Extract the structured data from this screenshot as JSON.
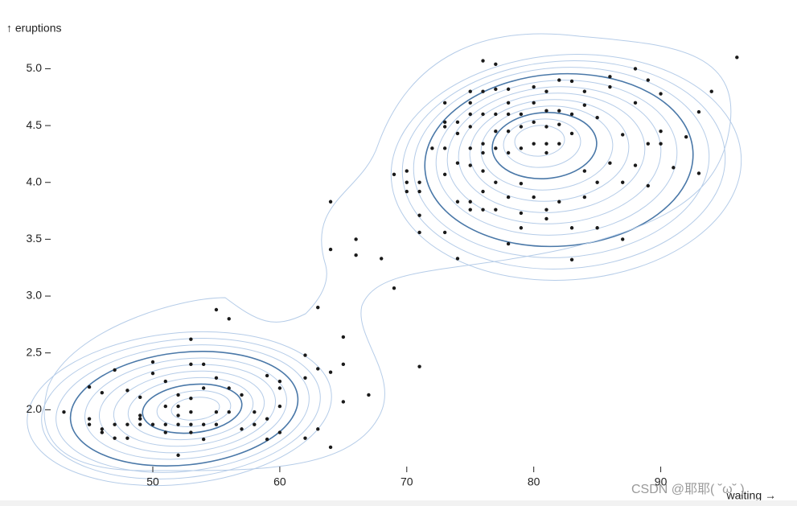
{
  "chart_data": {
    "type": "scatter",
    "x_label": "waiting →",
    "y_label": "↑ eruptions",
    "watermark": "CSDN @耶耶( ˘ω˘ )",
    "color": "#1a1a1a",
    "xlim": [
      40.5,
      97.5
    ],
    "ylim": [
      1.5,
      5.18
    ],
    "xticks": [
      50,
      60,
      70,
      80,
      90
    ],
    "yticks": [
      {
        "value": 2,
        "label": "2.0"
      },
      2.5,
      {
        "value": 3,
        "label": "3.0"
      },
      3.5,
      {
        "value": 4,
        "label": "4.0"
      },
      4.5,
      {
        "value": 5,
        "label": "5.0"
      }
    ],
    "x": [
      43,
      45,
      45,
      45,
      46,
      46,
      46,
      47,
      47,
      47,
      48,
      48,
      48,
      49,
      49,
      49,
      49,
      50,
      50,
      50,
      51,
      51,
      51,
      51,
      52,
      52,
      52,
      52,
      52,
      53,
      53,
      53,
      53,
      53,
      53,
      54,
      54,
      54,
      54,
      55,
      55,
      55,
      55,
      56,
      56,
      56,
      57,
      57,
      58,
      58,
      59,
      59,
      59,
      60,
      60,
      60,
      60,
      62,
      62,
      62,
      63,
      63,
      63,
      64,
      64,
      65,
      65,
      65,
      67,
      64,
      64,
      66,
      66,
      68,
      69,
      71,
      74,
      69,
      70,
      70,
      70,
      71,
      71,
      71,
      71,
      72,
      73,
      73,
      73,
      73,
      73,
      73,
      74,
      74,
      74,
      74,
      75,
      75,
      75,
      75,
      75,
      75,
      75,
      75,
      76,
      76,
      76,
      76,
      76,
      76,
      76,
      76,
      77,
      77,
      77,
      77,
      77,
      77,
      77,
      78,
      78,
      78,
      78,
      78,
      78,
      78,
      79,
      79,
      79,
      79,
      79,
      79,
      80,
      80,
      80,
      80,
      80,
      81,
      81,
      81,
      81,
      81,
      81,
      81,
      82,
      82,
      82,
      82,
      82,
      83,
      83,
      83,
      83,
      83,
      84,
      84,
      84,
      84,
      85,
      85,
      85,
      86,
      86,
      86,
      87,
      87,
      87,
      88,
      88,
      88,
      89,
      89,
      89,
      90,
      90,
      90,
      91,
      92,
      93,
      93,
      94,
      96
    ],
    "values": [
      1.98,
      2.2,
      1.92,
      1.87,
      2.15,
      1.83,
      1.8,
      2.35,
      1.87,
      1.75,
      2.17,
      1.75,
      1.87,
      2.11,
      1.95,
      1.92,
      1.87,
      2.42,
      2.32,
      1.87,
      2.25,
      2.03,
      1.87,
      1.8,
      2.13,
      2.03,
      1.95,
      1.87,
      1.6,
      2.62,
      2.4,
      2.1,
      1.98,
      1.87,
      1.8,
      2.4,
      2.19,
      1.87,
      1.74,
      2.88,
      2.28,
      1.98,
      1.87,
      2.8,
      2.19,
      1.98,
      2.13,
      1.83,
      1.98,
      1.87,
      2.3,
      1.92,
      1.74,
      2.25,
      2.19,
      2.03,
      1.8,
      2.48,
      2.28,
      1.75,
      2.9,
      2.36,
      1.83,
      2.33,
      1.67,
      2.64,
      2.4,
      2.07,
      2.13,
      3.83,
      3.41,
      3.5,
      3.36,
      3.33,
      3.07,
      2.38,
      3.33,
      4.07,
      4.1,
      4,
      3.92,
      4,
      3.92,
      3.71,
      3.56,
      4.3,
      4.7,
      4.53,
      4.49,
      4.3,
      4.07,
      3.56,
      4.53,
      4.43,
      4.17,
      3.83,
      4.8,
      4.7,
      4.6,
      4.49,
      4.3,
      4.15,
      3.83,
      3.76,
      5.07,
      4.8,
      4.6,
      4.34,
      4.26,
      4.1,
      3.92,
      3.76,
      5.04,
      4.82,
      4.6,
      4.45,
      4.3,
      4,
      3.76,
      4.82,
      4.7,
      4.6,
      4.45,
      4.26,
      3.87,
      3.46,
      4.6,
      4.49,
      4.3,
      3.99,
      3.73,
      3.6,
      4.84,
      4.7,
      4.53,
      4.34,
      3.87,
      4.8,
      4.63,
      4.49,
      4.34,
      4.26,
      3.76,
      3.68,
      4.9,
      4.63,
      4.51,
      4.34,
      3.83,
      4.89,
      4.6,
      4.43,
      3.6,
      3.32,
      4.8,
      4.68,
      4.1,
      3.87,
      4.57,
      4,
      3.6,
      4.93,
      4.84,
      4.17,
      4.42,
      4,
      3.5,
      5,
      4.7,
      4.15,
      4.9,
      4.34,
      3.97,
      4.78,
      4.45,
      4.34,
      4.13,
      4.4,
      4.62,
      4.08,
      4.8,
      5.1
    ]
  }
}
